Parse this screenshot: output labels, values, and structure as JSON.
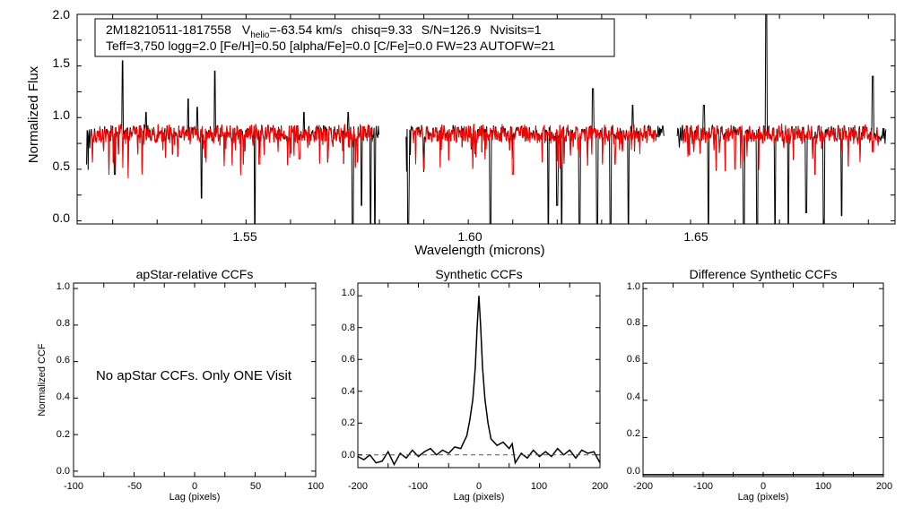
{
  "colors": {
    "observed": "#000000",
    "model": "#ff0000",
    "zero_line": "#555555"
  },
  "chart_data": [
    {
      "type": "line",
      "id": "spectrum",
      "title": "",
      "xlabel": "Wavelength (microns)",
      "ylabel": "Normalized Flux",
      "xlim": [
        1.512,
        1.696
      ],
      "ylim": [
        -0.03,
        2.0
      ],
      "xticks": [
        "1.55",
        "1.60",
        "1.65"
      ],
      "yticks": [
        "0.0",
        "0.5",
        "1.0",
        "1.5",
        "2.0"
      ],
      "chips": [
        [
          1.514,
          1.58
        ],
        [
          1.586,
          1.644
        ],
        [
          1.647,
          1.694
        ]
      ],
      "continuum": 0.85,
      "series": [
        {
          "name": "observed",
          "spikes": [
            [
              1.5222,
              1.55
            ],
            [
              1.5275,
              1.05
            ],
            [
              1.537,
              1.18
            ],
            [
              1.543,
              1.45
            ],
            [
              1.563,
              1.05
            ],
            [
              1.573,
              1.05
            ],
            [
              1.618,
              1.18
            ],
            [
              1.628,
              1.28
            ],
            [
              1.637,
              1.12
            ],
            [
              1.653,
              1.12
            ],
            [
              1.667,
              2.0
            ],
            [
              1.691,
              1.4
            ],
            [
              1.539,
              1.1
            ]
          ],
          "dips": [
            [
              1.514,
              0.55
            ],
            [
              1.5205,
              0.45
            ],
            [
              1.54,
              0.22
            ],
            [
              1.552,
              -0.03
            ],
            [
              1.574,
              -0.03
            ],
            [
              1.576,
              0.15
            ],
            [
              1.578,
              -0.03
            ],
            [
              1.579,
              -0.03
            ],
            [
              1.5865,
              -0.03
            ],
            [
              1.605,
              -0.03
            ],
            [
              1.618,
              -0.03
            ],
            [
              1.621,
              -0.03
            ],
            [
              1.625,
              -0.03
            ],
            [
              1.629,
              -0.03
            ],
            [
              1.632,
              -0.03
            ],
            [
              1.636,
              -0.03
            ],
            [
              1.654,
              -0.03
            ],
            [
              1.662,
              -0.03
            ],
            [
              1.665,
              -0.03
            ],
            [
              1.669,
              -0.03
            ],
            [
              1.672,
              -0.03
            ],
            [
              1.676,
              0.08
            ],
            [
              1.68,
              -0.03
            ],
            [
              1.684,
              0.05
            ],
            [
              1.646,
              0.3
            ],
            [
              1.62,
              0.15
            ]
          ]
        },
        {
          "name": "model",
          "dips": [
            [
              1.553,
              0.55
            ],
            [
              1.562,
              0.6
            ],
            [
              1.59,
              0.5
            ],
            [
              1.61,
              0.45
            ],
            [
              1.633,
              0.55
            ],
            [
              1.66,
              0.5
            ],
            [
              1.678,
              0.45
            ]
          ]
        }
      ],
      "info_box": {
        "line1": {
          "star": "2M18210511-1817558",
          "v_symbol": "V",
          "v_sub": "helio",
          "v_value": "=-63.54 km/s",
          "chisq": "chisq=9.33",
          "snr": "S/N=126.9",
          "nvisits": "Nvisits=1"
        },
        "line2": "Teff=3,750 logg=2.0 [Fe/H]=0.50 [alpha/Fe]=0.0 [C/Fe]=0.0 FW=23 AUTOFW=21"
      }
    },
    {
      "type": "line",
      "id": "apstar",
      "title": "apStar-relative CCFs",
      "xlabel": "Lag (pixels)",
      "ylabel": "Normalized CCF",
      "xlim": [
        -100,
        100
      ],
      "ylim": [
        -0.03,
        1.03
      ],
      "xticks": [
        "-100",
        "-50",
        "0",
        "50",
        "100"
      ],
      "yticks": [
        "0.0",
        "0.2",
        "0.4",
        "0.6",
        "0.8",
        "1.0"
      ],
      "series": [],
      "annotation": "No apStar CCFs.  Only ONE Visit"
    },
    {
      "type": "line",
      "id": "synthetic",
      "title": "Synthetic CCFs",
      "xlabel": "Lag (pixels)",
      "ylabel": "",
      "xlim": [
        -200,
        200
      ],
      "ylim": [
        -0.08,
        1.08
      ],
      "xticks": [
        "-200",
        "-100",
        "0",
        "100",
        "200"
      ],
      "yticks": [
        "0.0",
        "0.2",
        "0.4",
        "0.6",
        "0.8",
        "1.0"
      ],
      "series": [
        {
          "name": "ccf",
          "x": [
            -200,
            -190,
            -180,
            -170,
            -160,
            -150,
            -140,
            -130,
            -120,
            -110,
            -100,
            -90,
            -80,
            -70,
            -60,
            -50,
            -40,
            -30,
            -20,
            -15,
            -10,
            -6,
            -3,
            0,
            3,
            6,
            10,
            15,
            20,
            30,
            40,
            50,
            55,
            60,
            70,
            80,
            90,
            100,
            110,
            120,
            130,
            140,
            150,
            160,
            170,
            180,
            190,
            200
          ],
          "y": [
            -0.01,
            -0.03,
            0.0,
            -0.05,
            -0.04,
            0.02,
            -0.06,
            0.01,
            -0.02,
            0.03,
            -0.01,
            0.02,
            0.04,
            0.0,
            0.03,
            0.01,
            0.05,
            0.04,
            0.12,
            0.22,
            0.35,
            0.55,
            0.8,
            1.0,
            0.8,
            0.55,
            0.35,
            0.2,
            0.1,
            0.06,
            0.08,
            0.04,
            0.07,
            -0.05,
            0.01,
            -0.02,
            0.03,
            -0.01,
            0.02,
            -0.01,
            0.04,
            0.0,
            0.03,
            -0.02,
            0.03,
            0.01,
            0.02,
            -0.05
          ]
        },
        {
          "name": "zero",
          "x": [
            -200,
            200
          ],
          "y": [
            0.0,
            0.0
          ],
          "dashed": true
        }
      ]
    },
    {
      "type": "line",
      "id": "difference",
      "title": "Difference Synthetic CCFs",
      "xlabel": "Lag (pixels)",
      "ylabel": "",
      "xlim": [
        -200,
        200
      ],
      "ylim": [
        -0.01,
        1.03
      ],
      "xticks": [
        "-200",
        "-100",
        "0",
        "100",
        "200"
      ],
      "yticks": [
        "0.0",
        "0.2",
        "0.4",
        "0.6",
        "0.8",
        "1.0"
      ],
      "series": [
        {
          "name": "difference",
          "x": [
            -200,
            200
          ],
          "y": [
            0.0,
            0.0
          ]
        }
      ]
    }
  ]
}
